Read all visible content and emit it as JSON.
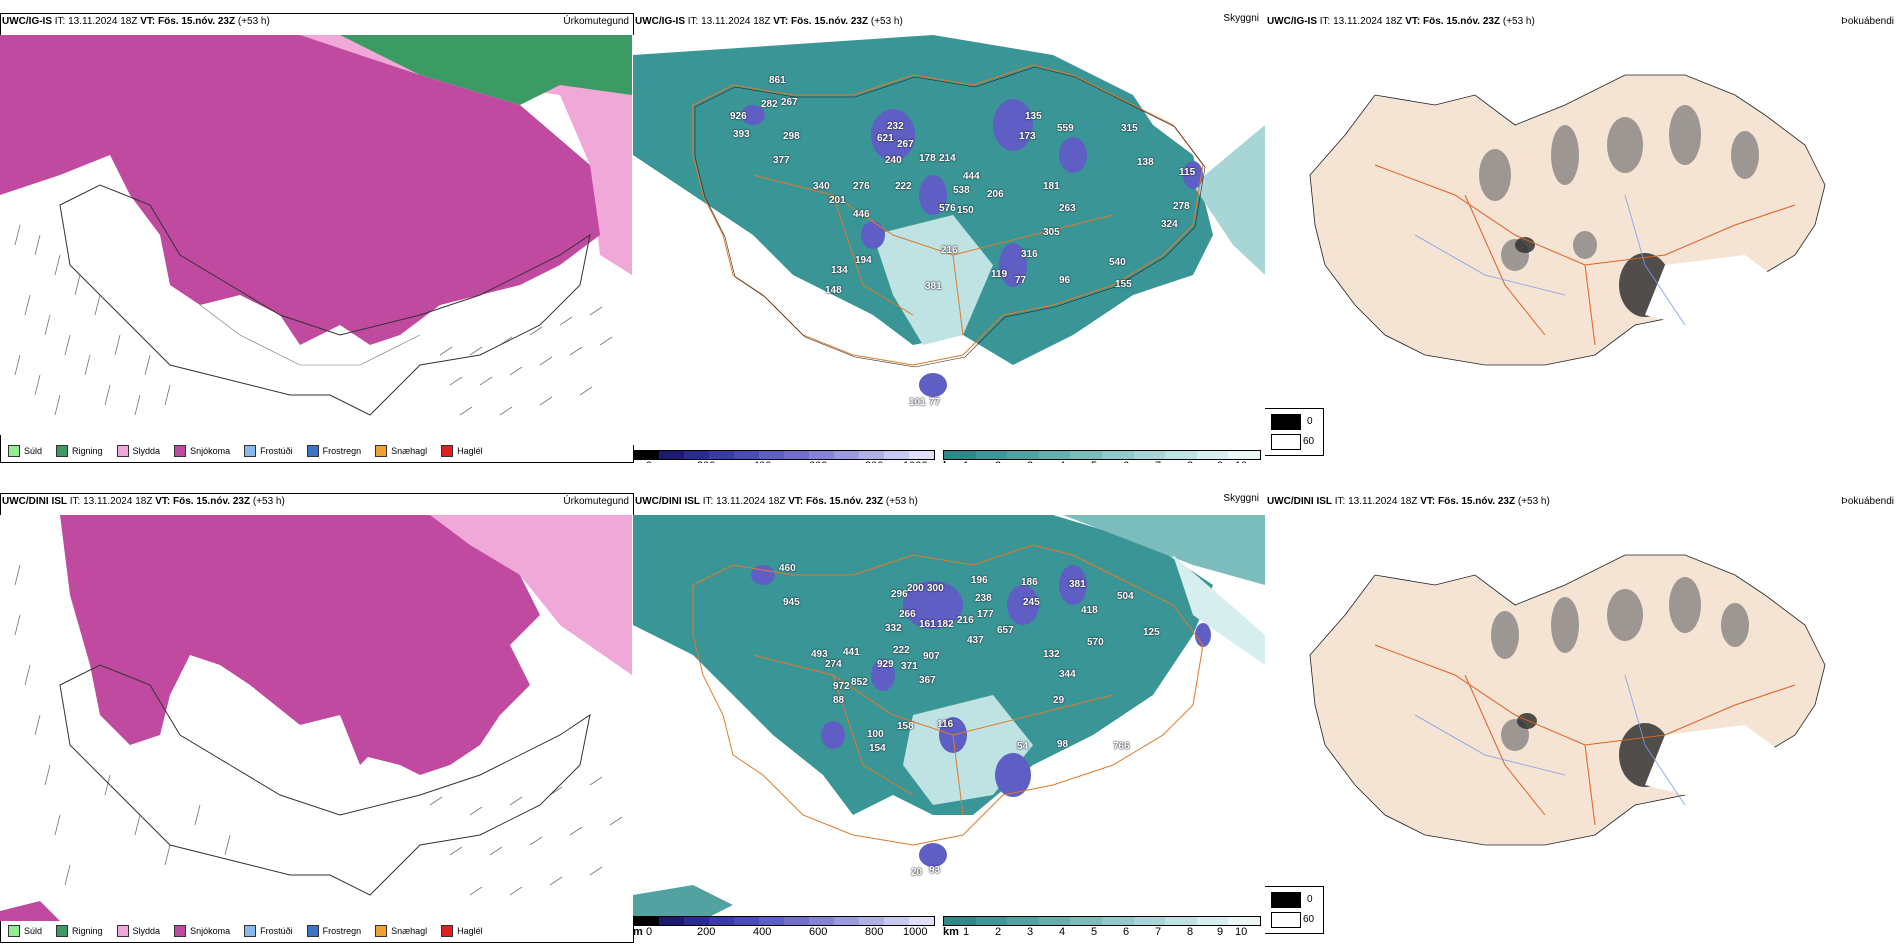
{
  "rows": [
    {
      "model": "UWC/IG-IS",
      "it_label": "IT:",
      "it_value": "13.11.2024 18Z",
      "vt_label": "VT: Fös. 15.nóv. 23Z",
      "lead": "(+53 h)",
      "panel_titles": [
        "Úrkomutegund",
        "Skyggni",
        "Þokuábendi"
      ],
      "cloud_labels": [
        "861",
        "926",
        "282",
        "267",
        "393",
        "298",
        "377",
        "621",
        "232",
        "267",
        "240",
        "178",
        "214",
        "340",
        "201",
        "276",
        "222",
        "446",
        "538",
        "576",
        "150",
        "206",
        "444",
        "135",
        "173",
        "559",
        "315",
        "138",
        "115",
        "181",
        "263",
        "305",
        "278",
        "324",
        "216",
        "316",
        "194",
        "134",
        "148",
        "381",
        "119",
        "77",
        "96",
        "540",
        "155",
        "101",
        "77"
      ]
    },
    {
      "model": "UWC/DINI ISL",
      "it_label": "IT:",
      "it_value": "13.11.2024 18Z",
      "vt_label": "VT: Fös. 15.nóv. 23Z",
      "lead": "(+53 h)",
      "panel_titles": [
        "Úrkomutegund",
        "Skyggni",
        "Þokuábendi"
      ],
      "cloud_labels": [
        "460",
        "945",
        "296",
        "200",
        "300",
        "196",
        "186",
        "238",
        "245",
        "381",
        "418",
        "504",
        "266",
        "332",
        "161",
        "182",
        "216",
        "177",
        "657",
        "437",
        "570",
        "125",
        "493",
        "441",
        "274",
        "929",
        "907",
        "222",
        "371",
        "367",
        "132",
        "344",
        "852",
        "972",
        "88",
        "29",
        "100",
        "154",
        "158",
        "116",
        "54",
        "98",
        "766",
        "20",
        "93"
      ]
    }
  ],
  "precip_legend": [
    {
      "label": "Súld",
      "color": "#90ee90"
    },
    {
      "label": "Rigning",
      "color": "#3c9a64"
    },
    {
      "label": "Slydda",
      "color": "#f0a8d8"
    },
    {
      "label": "Snjókoma",
      "color": "#c04aa0"
    },
    {
      "label": "Frostúði",
      "color": "#88b8f0"
    },
    {
      "label": "Frostregn",
      "color": "#3a74c8"
    },
    {
      "label": "Snæhagl",
      "color": "#f0a030"
    },
    {
      "label": "Haglél",
      "color": "#e02020"
    }
  ],
  "vis_bar_low": {
    "unit": "m",
    "ticks": [
      "0",
      "200",
      "400",
      "600",
      "800",
      "1000"
    ],
    "colors": [
      "#000000",
      "#1a1a6e",
      "#2a2a90",
      "#3a3aa8",
      "#4a4ab8",
      "#5e5ec4",
      "#7070cc",
      "#8484d4",
      "#9a9ade",
      "#b0b0e6",
      "#c8c8f0",
      "#e0e0f8"
    ]
  },
  "vis_bar_high": {
    "unit": "km",
    "ticks": [
      "1",
      "2",
      "3",
      "4",
      "5",
      "6",
      "7",
      "8",
      "9",
      "10"
    ],
    "colors": [
      "#2e8a8a",
      "#3f9696",
      "#52a2a2",
      "#66afaf",
      "#7bbcbc",
      "#92c9c9",
      "#a8d6d6",
      "#bfe2e2",
      "#d6eeee",
      "#ebf7f7"
    ]
  },
  "fog_key": {
    "low_value": "0",
    "high_value": "60",
    "low_color": "#000000",
    "high_color": "#ffffff"
  },
  "colors": {
    "snow": "#c04aa0",
    "sleet": "#f0a8d8",
    "rain": "#3c9a64",
    "teal": "#3a9696",
    "land_fog": "#f5e3d4",
    "roads": "#e06020",
    "rivers": "#7a9ef0"
  }
}
